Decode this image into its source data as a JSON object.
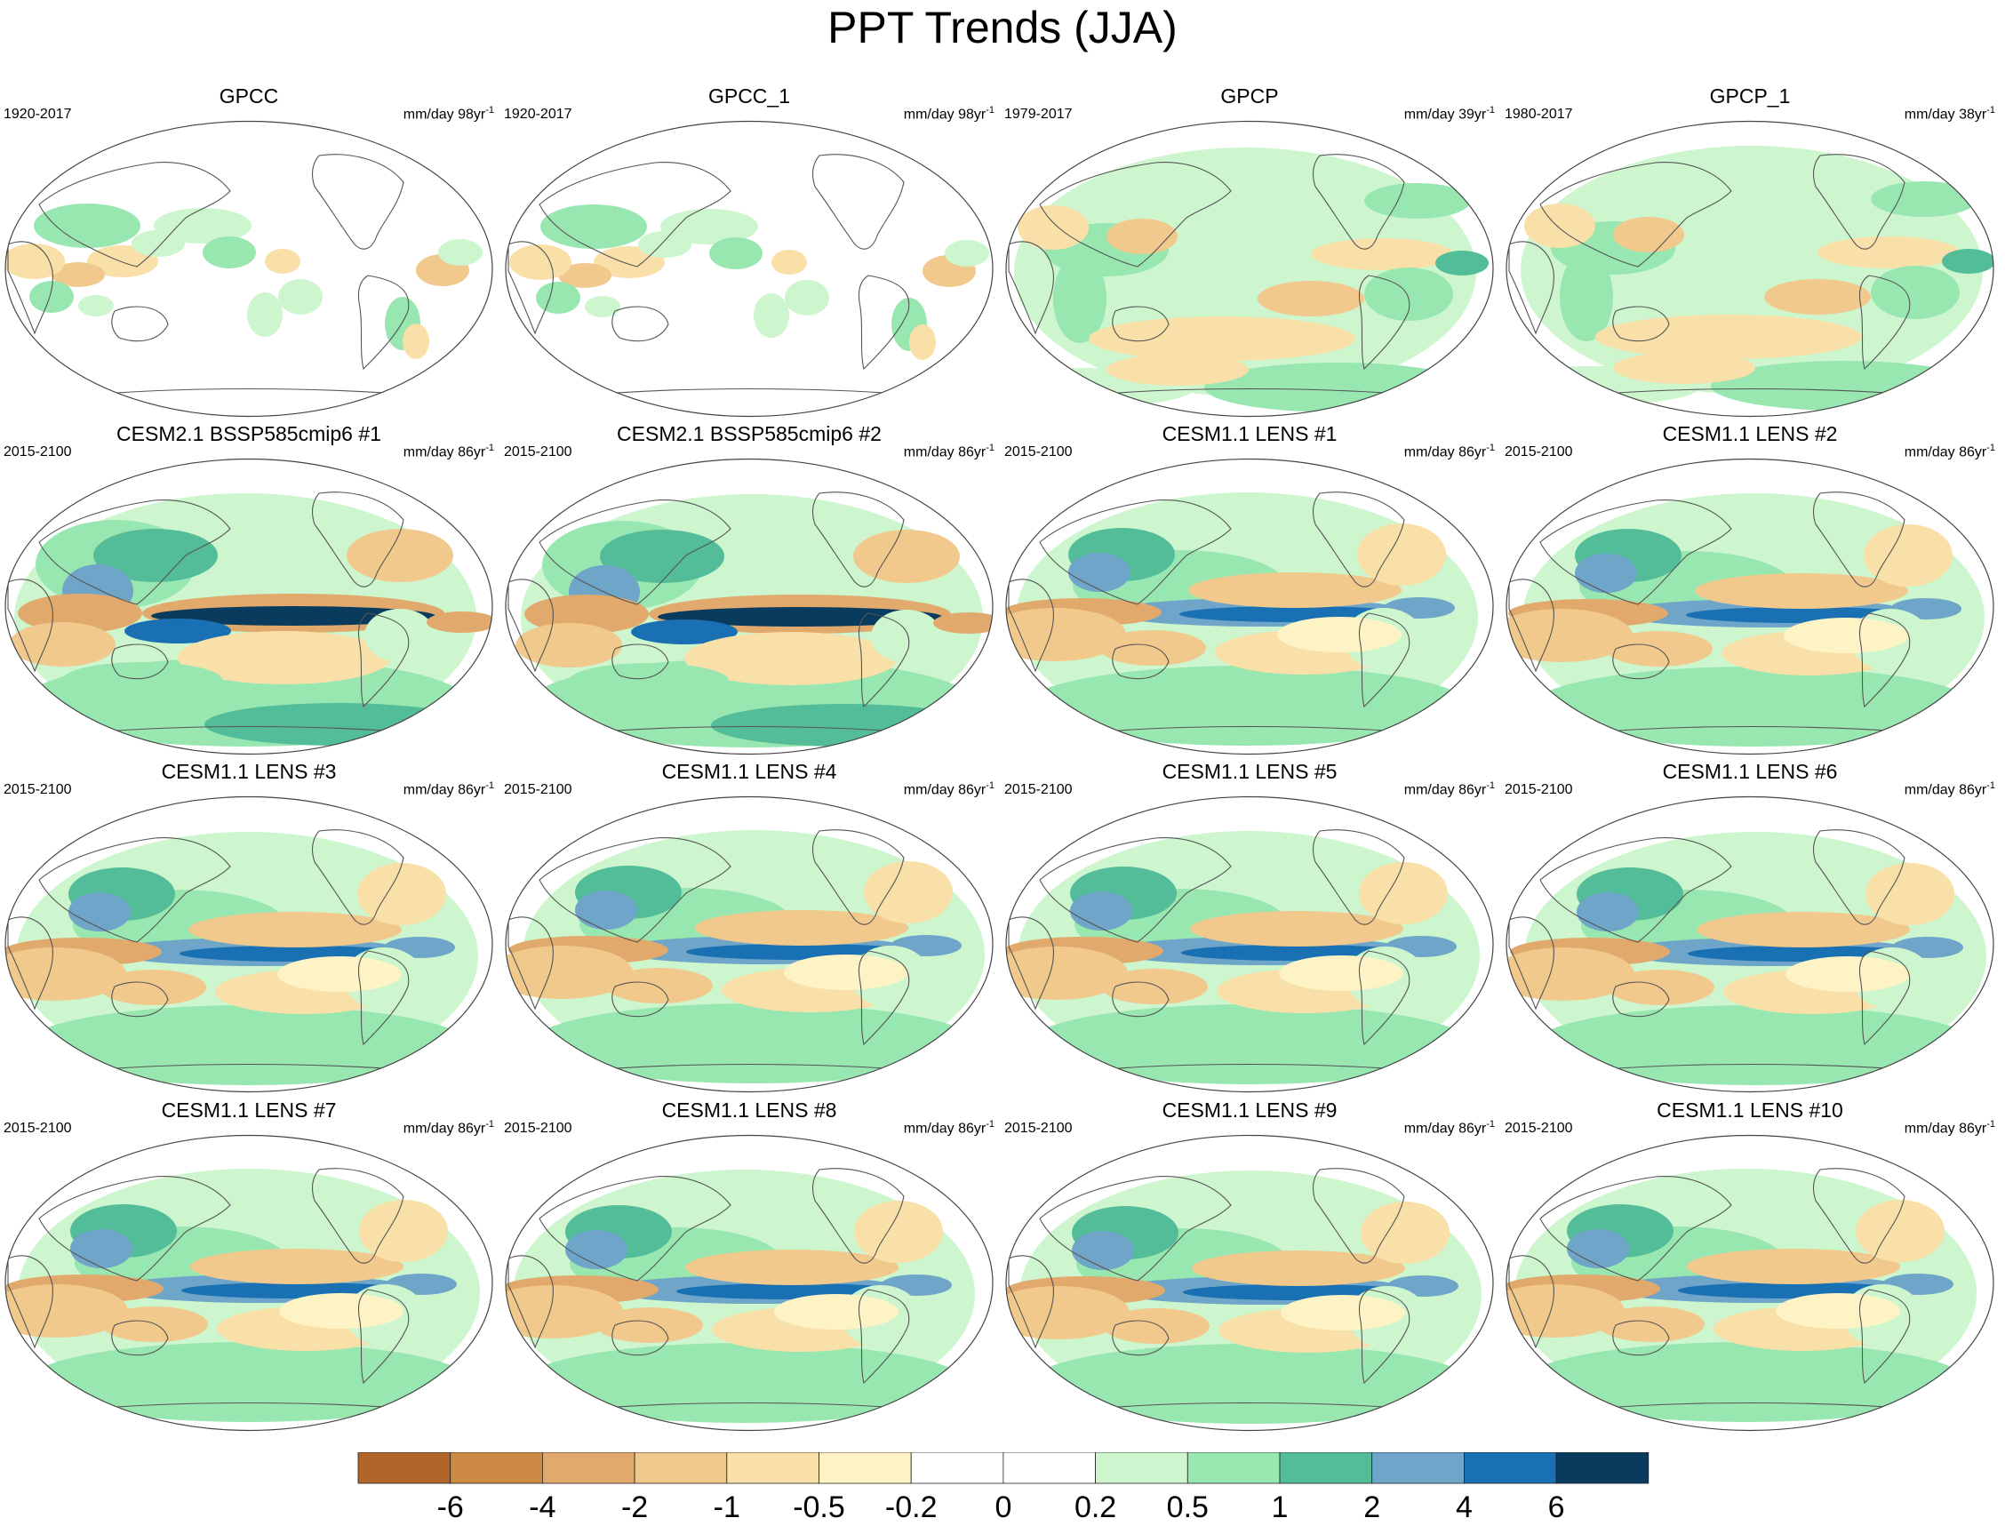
{
  "title": "PPT Trends (JJA)",
  "panels": [
    {
      "title": "GPCC",
      "period": "1920-2017",
      "unit": "mm/day",
      "years": "98yr",
      "type": "gpcc"
    },
    {
      "title": "GPCC_1",
      "period": "1920-2017",
      "unit": "mm/day",
      "years": "98yr",
      "type": "gpcc"
    },
    {
      "title": "GPCP",
      "period": "1979-2017",
      "unit": "mm/day",
      "years": "39yr",
      "type": "gpcp"
    },
    {
      "title": "GPCP_1",
      "period": "1980-2017",
      "unit": "mm/day",
      "years": "38yr",
      "type": "gpcp"
    },
    {
      "title": "CESM2.1 BSSP585cmip6 #1",
      "period": "2015-2100",
      "unit": "mm/day",
      "years": "86yr",
      "type": "cesm2"
    },
    {
      "title": "CESM2.1 BSSP585cmip6 #2",
      "period": "2015-2100",
      "unit": "mm/day",
      "years": "86yr",
      "type": "cesm2"
    },
    {
      "title": "CESM1.1 LENS #1",
      "period": "2015-2100",
      "unit": "mm/day",
      "years": "86yr",
      "type": "lens"
    },
    {
      "title": "CESM1.1 LENS #2",
      "period": "2015-2100",
      "unit": "mm/day",
      "years": "86yr",
      "type": "lens"
    },
    {
      "title": "CESM1.1 LENS #3",
      "period": "2015-2100",
      "unit": "mm/day",
      "years": "86yr",
      "type": "lens"
    },
    {
      "title": "CESM1.1 LENS #4",
      "period": "2015-2100",
      "unit": "mm/day",
      "years": "86yr",
      "type": "lens"
    },
    {
      "title": "CESM1.1 LENS #5",
      "period": "2015-2100",
      "unit": "mm/day",
      "years": "86yr",
      "type": "lens"
    },
    {
      "title": "CESM1.1 LENS #6",
      "period": "2015-2100",
      "unit": "mm/day",
      "years": "86yr",
      "type": "lens"
    },
    {
      "title": "CESM1.1 LENS #7",
      "period": "2015-2100",
      "unit": "mm/day",
      "years": "86yr",
      "type": "lens"
    },
    {
      "title": "CESM1.1 LENS #8",
      "period": "2015-2100",
      "unit": "mm/day",
      "years": "86yr",
      "type": "lens"
    },
    {
      "title": "CESM1.1 LENS #9",
      "period": "2015-2100",
      "unit": "mm/day",
      "years": "86yr",
      "type": "lens"
    },
    {
      "title": "CESM1.1 LENS #10",
      "period": "2015-2100",
      "unit": "mm/day",
      "years": "86yr",
      "type": "lens"
    }
  ],
  "colorbar": {
    "labels": [
      "-6",
      "-4",
      "-2",
      "-1",
      "-0.5",
      "-0.2",
      "0",
      "0.2",
      "0.5",
      "1",
      "2",
      "4",
      "6"
    ],
    "colors": [
      "#b0662a",
      "#cd8a45",
      "#e1aa6c",
      "#f1c98c",
      "#f8e0a8",
      "#fdf3c5",
      "#ffffff",
      "#ffffff",
      "#cdf6cf",
      "#98e6b0",
      "#53bc98",
      "#6ea5c8",
      "#1970b3",
      "#083b5e"
    ]
  }
}
